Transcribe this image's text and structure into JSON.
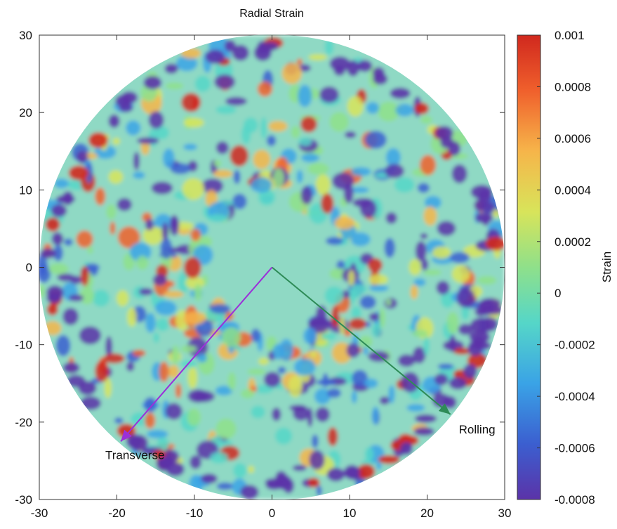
{
  "chart_data": {
    "type": "heatmap",
    "title": "Radial Strain",
    "xlabel": "",
    "ylabel": "",
    "xlim": [
      -30,
      30
    ],
    "ylim": [
      -30,
      30
    ],
    "x_ticks": [
      -30,
      -20,
      -10,
      0,
      10,
      20,
      30
    ],
    "y_ticks": [
      30,
      20,
      10,
      0,
      -10,
      -20,
      -30
    ],
    "grid": false,
    "shape": "annulus",
    "inner_radius": 8.5,
    "outer_radius": 30,
    "colorbar": {
      "label": "Strain",
      "min": -0.0008,
      "max": 0.001,
      "ticks": [
        "0.001",
        "0.0008",
        "0.0006",
        "0.0004",
        "0.0002",
        "0",
        "-0.0002",
        "-0.0004",
        "-0.0006",
        "-0.0008"
      ],
      "colormap": [
        "#5b33a8",
        "#3b5fd0",
        "#3aa3e6",
        "#55d6c8",
        "#8fe08a",
        "#d8e45a",
        "#f6b54a",
        "#f0602c",
        "#d0281e"
      ]
    },
    "annotations": [
      {
        "label": "Rolling",
        "arrow_from": [
          0,
          0
        ],
        "arrow_to": [
          23,
          -19
        ],
        "color": "#2e8b57"
      },
      {
        "label": "Transverse",
        "arrow_from": [
          0,
          0
        ],
        "arrow_to": [
          -19.5,
          -22.5
        ],
        "color": "#9b30d9"
      }
    ],
    "field_description": "noisy radial strain field with red (positive) and purple (negative) blobs; dense purple band along outer edge"
  }
}
